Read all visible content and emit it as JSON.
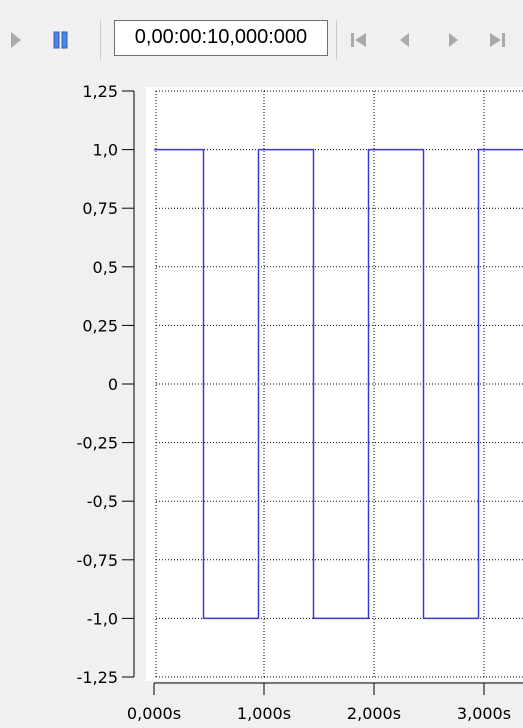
{
  "toolbar": {
    "play_icon": "play-icon",
    "pause_icon": "pause-icon",
    "time_value": "0,00:00:10,000:000",
    "skip_start_icon": "skip-to-start-icon",
    "step_back_icon": "step-back-icon",
    "step_forward_icon": "step-forward-icon",
    "skip_end_icon": "skip-to-end-icon"
  },
  "colors": {
    "signal": "#3a3acc",
    "grid": "#000000",
    "plot_bg": "#ffffff",
    "icon_disabled": "#a9a9a9",
    "icon_active": "#2f6fd6"
  },
  "chart_data": {
    "type": "line",
    "title": "",
    "xlabel": "",
    "ylabel": "",
    "xlim": [
      0,
      3.35
    ],
    "ylim": [
      -1.25,
      1.25
    ],
    "grid": true,
    "y_ticks": [
      1.25,
      1.0,
      0.75,
      0.5,
      0.25,
      0,
      -0.25,
      -0.5,
      -0.75,
      -1.0,
      -1.25
    ],
    "y_tick_labels": [
      "1,25",
      "1,0",
      "0,75",
      "0,5",
      "0,25",
      "0",
      "-0,25",
      "-0,5",
      "-0,75",
      "-1,0",
      "-1,25"
    ],
    "x_ticks": [
      0,
      1,
      2,
      3
    ],
    "x_tick_labels": [
      "0,000s",
      "1,000s",
      "2,000s",
      "3,000s"
    ],
    "x_gridlines": [
      1,
      2,
      3
    ],
    "series": [
      {
        "x": [
          0,
          0.45,
          0.45,
          0.95,
          0.95,
          1.45,
          1.45,
          1.95,
          1.95,
          2.45,
          2.45,
          2.95,
          2.95,
          3.35
        ],
        "y": [
          1,
          1,
          -1,
          -1,
          1,
          1,
          -1,
          -1,
          1,
          1,
          -1,
          -1,
          1,
          1
        ]
      }
    ]
  }
}
